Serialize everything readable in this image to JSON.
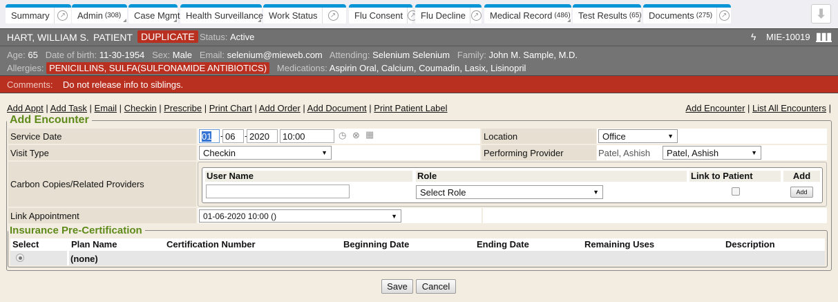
{
  "tabs": [
    {
      "label": "Summary",
      "popout": true
    },
    {
      "label": "Admin",
      "count": "(308)",
      "menu": true
    },
    {
      "label": "Case Mgmt",
      "menu": true
    },
    {
      "label": "Health Surveillance",
      "menu": true
    },
    {
      "label": "Work Status",
      "popout": true
    },
    {
      "label": "Flu Consent",
      "popout": true
    },
    {
      "label": "Flu Decline",
      "popout": true
    },
    {
      "label": "Medical Record",
      "count": "(486)",
      "menu": true
    },
    {
      "label": "Test Results",
      "count": "(65)",
      "menu": true
    },
    {
      "label": "Documents",
      "count": "(275)",
      "popout": true
    }
  ],
  "download_icon": "arrow-down-icon",
  "patient": {
    "name": "HART, WILLIAM S.",
    "type": "PATIENT",
    "flag": "DUPLICATE",
    "status_label": "Status:",
    "status": "Active",
    "id": "MIE-10019",
    "age_label": "Age:",
    "age": "65",
    "dob_label": "Date of birth:",
    "dob": "11-30-1954",
    "sex_label": "Sex:",
    "sex": "Male",
    "email_label": "Email:",
    "email": "selenium@mieweb.com",
    "attending_label": "Attending:",
    "attending": "Selenium Selenium",
    "family_label": "Family:",
    "family": "John M. Sample, M.D.",
    "allergies_label": "Allergies:",
    "allergies": "PENICILLINS, SULFA(SULFONAMIDE ANTIBIOTICS)",
    "medications_label": "Medications:",
    "medications": "Aspirin Oral, Calcium, Coumadin, Lasix, Lisinopril",
    "comments_label": "Comments:",
    "comments": "Do not release info to siblings."
  },
  "colors": {
    "tab_accent": "#0a96d6",
    "alert_red": "#b93020",
    "legend_green": "#5e8a1a"
  },
  "actions": [
    "Add Appt",
    "Add Task",
    "Email",
    "Checkin",
    "Prescribe",
    "Print Chart",
    "Add Order",
    "Add Document",
    "Print Patient Label"
  ],
  "right_actions": [
    "Add Encounter",
    "List All Encounters"
  ],
  "form": {
    "legend": "Add Encounter",
    "service_date_label": "Service Date",
    "month": "01",
    "day": "06",
    "year": "2020",
    "time": "10:00",
    "location_label": "Location",
    "location": "Office",
    "visit_type_label": "Visit Type",
    "visit_type": "Checkin",
    "provider_label": "Performing Provider",
    "provider_text": "Patel, Ashish",
    "provider": "Patel, Ashish",
    "cc_label": "Carbon Copies/Related Providers",
    "cc_headers": [
      "User Name",
      "Role",
      "Link to Patient",
      "Add"
    ],
    "role_placeholder": "Select Role",
    "add_btn": "Add",
    "link_appt_label": "Link Appointment",
    "link_appt": "01-06-2020 10:00 ()"
  },
  "insurance": {
    "legend": "Insurance Pre-Certification",
    "headers": [
      "Select",
      "Plan Name",
      "Certification Number",
      "Beginning Date",
      "Ending Date",
      "Remaining Uses",
      "Description"
    ],
    "row": {
      "plan": "(none)"
    }
  },
  "buttons": {
    "save": "Save",
    "cancel": "Cancel"
  }
}
